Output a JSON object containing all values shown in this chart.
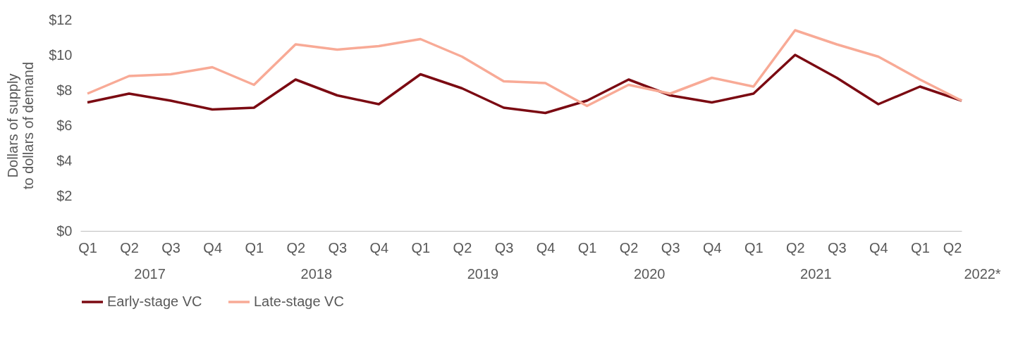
{
  "chart_data": {
    "type": "line",
    "ylabel": "Dollars of supply\nto dollars of demand",
    "categories": [
      "Q1",
      "Q2",
      "Q3",
      "Q4",
      "Q1",
      "Q2",
      "Q3",
      "Q4",
      "Q1",
      "Q2",
      "Q3",
      "Q4",
      "Q1",
      "Q2",
      "Q3",
      "Q4",
      "Q1",
      "Q2",
      "Q3",
      "Q4",
      "Q1",
      "Q2"
    ],
    "annotations": [
      "2017",
      "2018",
      "2019",
      "2020",
      "2021",
      "2022*"
    ],
    "series": [
      {
        "name": "Early-stage VC",
        "color": "#7b0a12",
        "values": [
          7.3,
          7.8,
          7.4,
          6.9,
          7.0,
          8.6,
          7.7,
          7.2,
          8.9,
          8.1,
          7.0,
          6.7,
          7.4,
          8.6,
          7.7,
          7.3,
          7.8,
          10.0,
          8.7,
          7.2,
          8.2,
          7.4
        ]
      },
      {
        "name": "Late-stage VC",
        "color": "#f8aa96",
        "values": [
          7.8,
          8.8,
          8.9,
          9.3,
          8.3,
          10.6,
          10.3,
          10.5,
          10.9,
          9.9,
          8.5,
          8.4,
          7.1,
          8.3,
          7.8,
          8.7,
          8.2,
          11.4,
          10.6,
          9.9,
          8.6,
          7.4
        ]
      }
    ],
    "ylim": [
      0,
      12
    ],
    "yticks": [
      {
        "value": 0,
        "label": "$0"
      },
      {
        "value": 2,
        "label": "$2"
      },
      {
        "value": 4,
        "label": "$4"
      },
      {
        "value": 6,
        "label": "$6"
      },
      {
        "value": 8,
        "label": "$8"
      },
      {
        "value": 10,
        "label": "$10"
      },
      {
        "value": 12,
        "label": "$12"
      }
    ],
    "grid": false,
    "legend": "bottom",
    "marker": "none",
    "line_style": "solid"
  }
}
